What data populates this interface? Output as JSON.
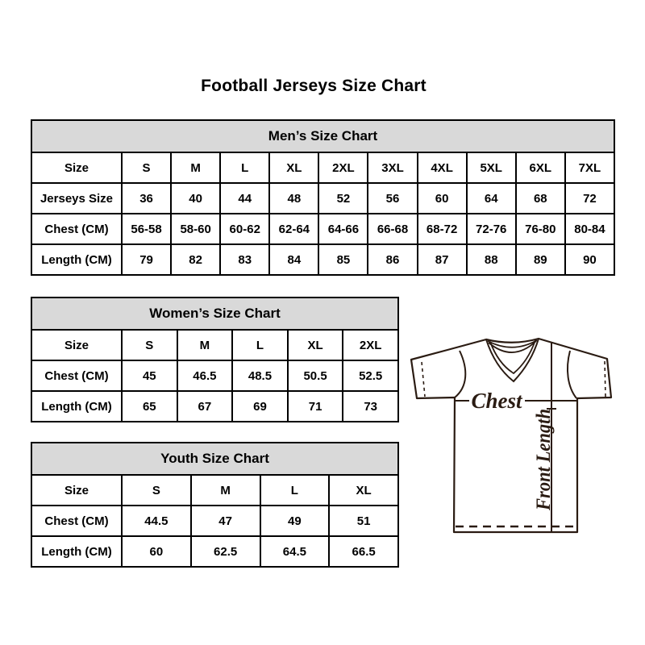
{
  "page": {
    "title": "Football Jerseys Size Chart"
  },
  "tables": {
    "mens": {
      "title": "Men’s Size Chart",
      "rows": [
        [
          "Size",
          "S",
          "M",
          "L",
          "XL",
          "2XL",
          "3XL",
          "4XL",
          "5XL",
          "6XL",
          "7XL"
        ],
        [
          "Jerseys Size",
          "36",
          "40",
          "44",
          "48",
          "52",
          "56",
          "60",
          "64",
          "68",
          "72"
        ],
        [
          "Chest (CM)",
          "56-58",
          "58-60",
          "60-62",
          "62-64",
          "64-66",
          "66-68",
          "68-72",
          "72-76",
          "76-80",
          "80-84"
        ],
        [
          "Length (CM)",
          "79",
          "82",
          "83",
          "84",
          "85",
          "86",
          "87",
          "88",
          "89",
          "90"
        ]
      ]
    },
    "womens": {
      "title": "Women’s Size Chart",
      "rows": [
        [
          "Size",
          "S",
          "M",
          "L",
          "XL",
          "2XL"
        ],
        [
          "Chest (CM)",
          "45",
          "46.5",
          "48.5",
          "50.5",
          "52.5"
        ],
        [
          "Length (CM)",
          "65",
          "67",
          "69",
          "71",
          "73"
        ]
      ]
    },
    "youth": {
      "title": "Youth Size Chart",
      "rows": [
        [
          "Size",
          "S",
          "M",
          "L",
          "XL"
        ],
        [
          "Chest (CM)",
          "44.5",
          "47",
          "49",
          "51"
        ],
        [
          "Length (CM)",
          "60",
          "62.5",
          "64.5",
          "66.5"
        ]
      ]
    }
  },
  "diagram": {
    "chest_label": "Chest",
    "front_length_label": "Front Length"
  },
  "colors": {
    "table_border": "#000000",
    "header_bg": "#d9d9d9",
    "line_art": "#2a1b12",
    "text": "#000000"
  }
}
